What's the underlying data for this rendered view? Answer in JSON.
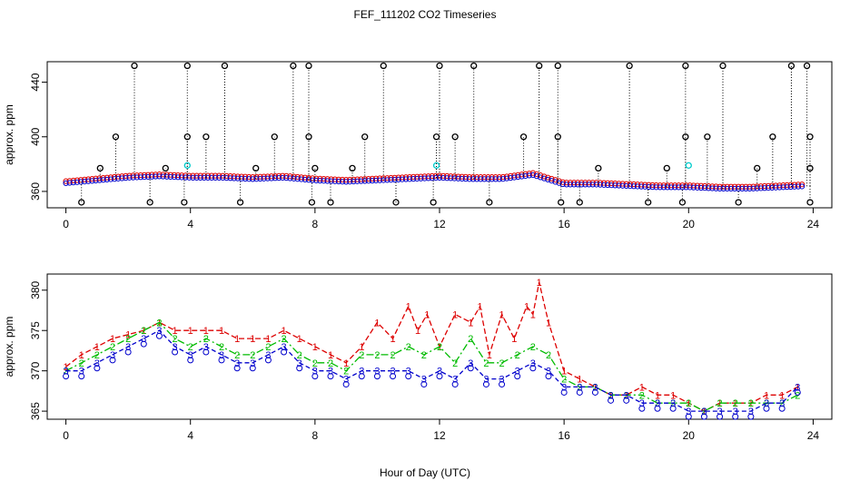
{
  "title": "FEF_111202  CO2 Timeseries",
  "xlabel": "Hour of Day (UTC)",
  "colors": {
    "series1": "#dd0000",
    "series2": "#00bb00",
    "series3": "#0000cc",
    "flagged_high": "#000000",
    "cyan": "#00cccc"
  },
  "chart_data": [
    {
      "type": "scatter",
      "panel": "top",
      "ylabel": "approx. ppm",
      "xlim": [
        -0.6,
        24.6
      ],
      "ylim": [
        348,
        455
      ],
      "xticks": [
        0,
        4,
        8,
        12,
        16,
        20,
        24
      ],
      "yticks": [
        360,
        400,
        440
      ],
      "series": [
        {
          "id": "line",
          "values_hours": [
            0,
            1,
            2,
            3,
            4,
            5,
            6,
            7,
            8,
            9,
            10,
            11,
            12,
            13,
            14,
            15,
            16,
            17,
            18,
            19,
            20,
            21,
            22,
            23,
            24
          ],
          "ppm": [
            366,
            368,
            370,
            371,
            370,
            370,
            369,
            370,
            368,
            367,
            368,
            369,
            370,
            369,
            369,
            372,
            365,
            365,
            364,
            363,
            363,
            362,
            362,
            363,
            364
          ]
        },
        {
          "id": "spikes_high",
          "hours": [
            2.2,
            3.9,
            5.1,
            7.3,
            7.8,
            10.2,
            12.0,
            13.1,
            15.2,
            15.8,
            18.1,
            19.9,
            21.1,
            23.3,
            23.8
          ],
          "ppm": 452
        },
        {
          "id": "spikes_mid",
          "hours": [
            1.6,
            3.9,
            4.5,
            6.7,
            7.8,
            9.6,
            11.9,
            12.5,
            14.7,
            15.8,
            19.9,
            20.6,
            22.7,
            23.9
          ],
          "ppm": 400
        },
        {
          "id": "spikes_low",
          "hours": [
            0.5,
            2.7,
            3.8,
            5.6,
            7.9,
            8.5,
            10.6,
            11.8,
            13.6,
            15.9,
            16.5,
            18.7,
            19.8,
            21.6,
            23.9
          ],
          "ppm": 352
        },
        {
          "id": "spikes_small",
          "hours": [
            1.1,
            3.2,
            6.1,
            8.0,
            9.2,
            17.1,
            19.3,
            22.2,
            23.9
          ],
          "ppm": 377
        }
      ]
    },
    {
      "type": "line",
      "panel": "bottom",
      "ylabel": "approx. ppm",
      "xlim": [
        -0.6,
        24.6
      ],
      "ylim": [
        364,
        382
      ],
      "xticks": [
        0,
        4,
        8,
        12,
        16,
        20,
        24
      ],
      "yticks": [
        365,
        370,
        375,
        380
      ],
      "series": [
        {
          "name": "1",
          "x": [
            0,
            0.5,
            1,
            1.5,
            2,
            2.5,
            3,
            3.5,
            4,
            4.5,
            5,
            5.5,
            6,
            6.5,
            7,
            7.5,
            8,
            8.5,
            9,
            9.5,
            10,
            10.5,
            11,
            11.3,
            11.6,
            12,
            12.5,
            13,
            13.3,
            13.6,
            14,
            14.4,
            14.8,
            15,
            15.2,
            15.5,
            16,
            16.5,
            17,
            17.5,
            18,
            18.5,
            19,
            19.5,
            20,
            20.5,
            21,
            21.5,
            22,
            22.5,
            23,
            23.5
          ],
          "y": [
            370.5,
            372,
            373,
            374,
            374.5,
            375,
            376,
            375,
            375,
            375,
            375,
            374,
            374,
            374,
            375,
            374,
            373,
            372,
            371,
            373,
            376,
            374,
            378,
            375,
            377,
            373,
            377,
            376,
            378,
            372,
            377,
            374,
            378,
            377,
            381,
            376,
            370,
            369,
            368,
            367,
            367,
            368,
            367,
            367,
            366,
            365,
            366,
            366,
            366,
            367,
            367,
            368
          ]
        },
        {
          "name": "2",
          "x": [
            0,
            0.5,
            1,
            1.5,
            2,
            2.5,
            3,
            3.5,
            4,
            4.5,
            5,
            5.5,
            6,
            6.5,
            7,
            7.5,
            8,
            8.5,
            9,
            9.5,
            10,
            10.5,
            11,
            11.5,
            12,
            12.5,
            13,
            13.5,
            14,
            14.5,
            15,
            15.5,
            16,
            16.5,
            17,
            17.5,
            18,
            18.5,
            19,
            19.5,
            20,
            20.5,
            21,
            21.5,
            22,
            22.5,
            23,
            23.5
          ],
          "y": [
            370,
            371,
            372,
            373,
            374,
            375,
            376,
            374,
            373,
            374,
            373,
            372,
            372,
            373,
            374,
            372,
            371,
            371,
            370,
            372,
            372,
            372,
            373,
            372,
            373,
            371,
            374,
            371,
            371,
            372,
            373,
            372,
            369,
            368,
            368,
            367,
            367,
            367,
            366,
            366,
            366,
            365,
            366,
            366,
            366,
            366,
            366,
            367
          ]
        },
        {
          "name": "3",
          "x": [
            0,
            0.5,
            1,
            1.5,
            2,
            2.5,
            3,
            3.5,
            4,
            4.5,
            5,
            5.5,
            6,
            6.5,
            7,
            7.5,
            8,
            8.5,
            9,
            9.5,
            10,
            10.5,
            11,
            11.5,
            12,
            12.5,
            13,
            13.5,
            14,
            14.5,
            15,
            15.5,
            16,
            16.5,
            17,
            17.5,
            18,
            18.5,
            19,
            19.5,
            20,
            20.5,
            21,
            21.5,
            22,
            22.5,
            23,
            23.5
          ],
          "y": [
            370,
            370,
            371,
            372,
            373,
            374,
            375,
            373,
            372,
            373,
            372,
            371,
            371,
            372,
            373,
            371,
            370,
            370,
            369,
            370,
            370,
            370,
            370,
            369,
            370,
            369,
            371,
            369,
            369,
            370,
            371,
            370,
            368,
            368,
            368,
            367,
            367,
            366,
            366,
            366,
            365,
            365,
            365,
            365,
            365,
            366,
            366,
            368
          ]
        }
      ]
    }
  ]
}
